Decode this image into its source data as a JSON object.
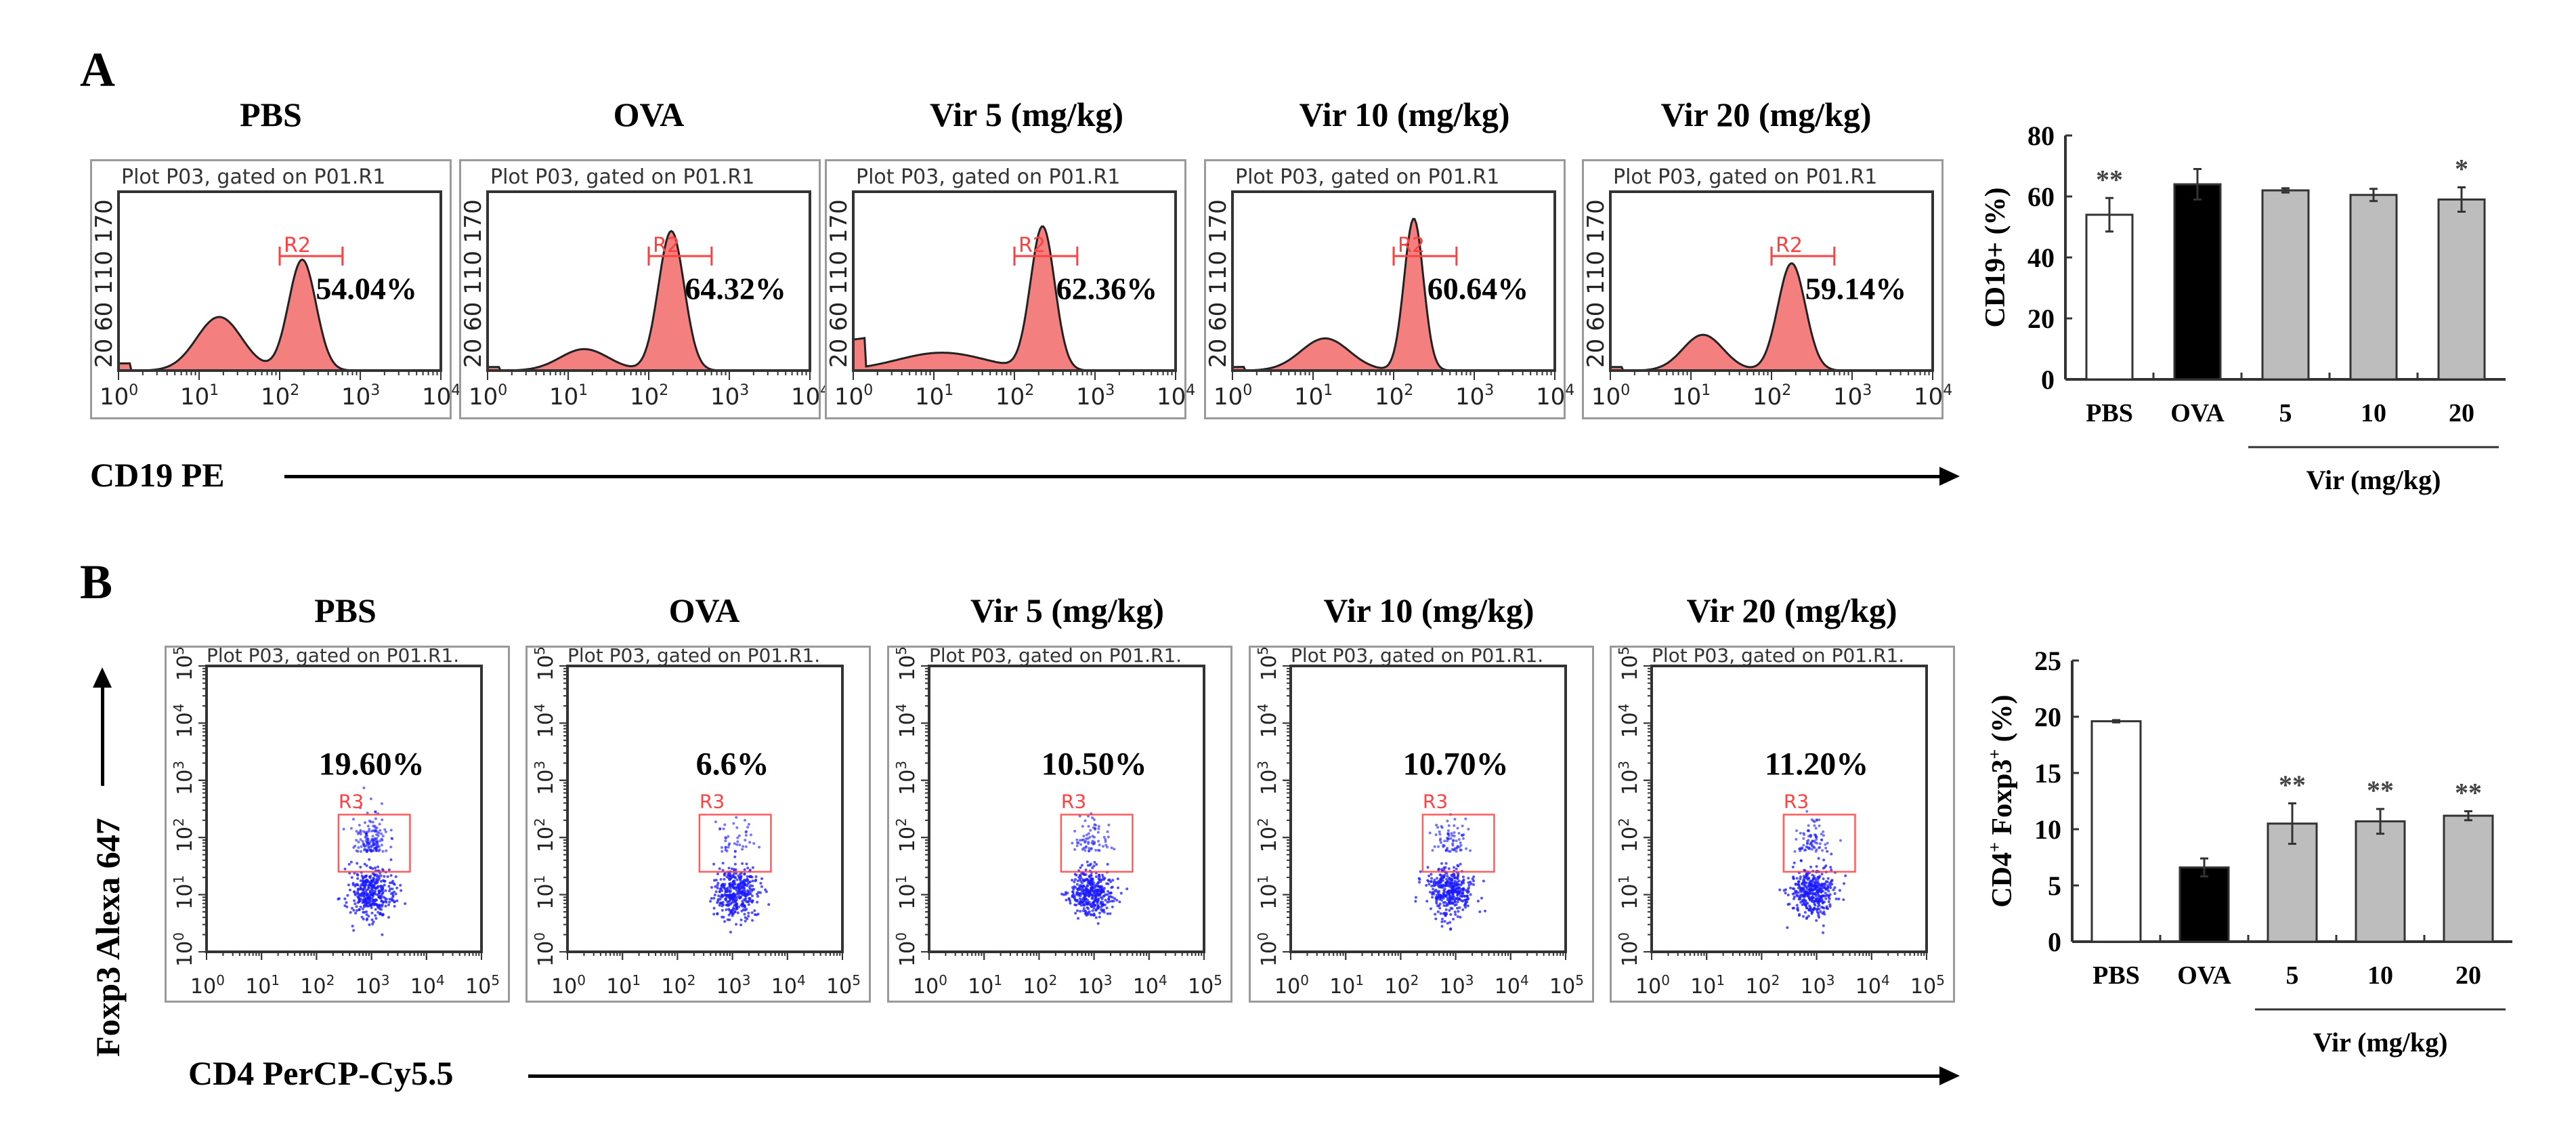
{
  "panel_a": {
    "letter": "A",
    "x_axis_label": "CD19 PE",
    "plot_header": "Plot P03, gated on P01.R1",
    "gate_label": "R2",
    "x_tick_base": "10",
    "x_tick_exponents": [
      "0",
      "1",
      "2",
      "3",
      "4"
    ],
    "y_tick_labels": [
      "20",
      "60",
      "110",
      "170"
    ],
    "plots": [
      {
        "title": "PBS",
        "percent": "54.04%"
      },
      {
        "title": "OVA",
        "percent": "64.32%"
      },
      {
        "title": "Vir 5 (mg/kg)",
        "percent": "62.36%"
      },
      {
        "title": "Vir 10 (mg/kg)",
        "percent": "60.64%"
      },
      {
        "title": "Vir 20 (mg/kg)",
        "percent": "59.14%"
      }
    ]
  },
  "panel_b": {
    "letter": "B",
    "x_axis_label": "CD4 PerCP-Cy5.5",
    "y_axis_label": "Foxp3 Alexa 647",
    "plot_header": "Plot P03, gated on P01.R1.",
    "gate_label": "R3",
    "tick_base": "10",
    "tick_exponents": [
      "0",
      "1",
      "2",
      "3",
      "4",
      "5"
    ],
    "plots": [
      {
        "title": "PBS",
        "percent": "19.60%"
      },
      {
        "title": "OVA",
        "percent": "6.6%"
      },
      {
        "title": "Vir 5 (mg/kg)",
        "percent": "10.50%"
      },
      {
        "title": "Vir 10 (mg/kg)",
        "percent": "10.70%"
      },
      {
        "title": "Vir 20 (mg/kg)",
        "percent": "11.20%"
      }
    ]
  },
  "colors": {
    "histogram_fill": "#f47f7f",
    "gate": "#ff4040",
    "dots": "#1a1aff",
    "bar_pbs": "#ffffff",
    "bar_ova": "#000000",
    "bar_vir": "#bdbdbd"
  },
  "chart_data": [
    {
      "type": "bar",
      "title": "",
      "ylabel": "CD19+ (%)",
      "ylabel_main": "CD19",
      "ylabel_sup": "+",
      "ylabel_tail": " (%)",
      "xlabel": "Vir (mg/kg)",
      "categories": [
        "PBS",
        "OVA",
        "5",
        "10",
        "20"
      ],
      "values": [
        54,
        64,
        62,
        60.5,
        59
      ],
      "errors": [
        5.5,
        5,
        0.7,
        2,
        4
      ],
      "significance": [
        "**",
        "",
        "",
        "",
        "*"
      ],
      "ylim": [
        0,
        80
      ],
      "yticks": [
        0,
        20,
        40,
        60,
        80
      ],
      "grid": false
    },
    {
      "type": "bar",
      "title": "",
      "ylabel": "CD4+ Foxp3+ (%)",
      "ylabel_main": "CD4",
      "ylabel_sup": "+",
      "ylabel_mid": " Foxp3",
      "ylabel_sup2": "+",
      "ylabel_tail": " (%)",
      "xlabel": "Vir (mg/kg)",
      "categories": [
        "PBS",
        "OVA",
        "5",
        "10",
        "20"
      ],
      "values": [
        19.6,
        6.6,
        10.5,
        10.7,
        11.2
      ],
      "errors": [
        0.1,
        0.8,
        1.8,
        1.1,
        0.4
      ],
      "significance": [
        "",
        "",
        "**",
        "**",
        "**"
      ],
      "ylim": [
        0,
        25
      ],
      "yticks": [
        0,
        5,
        10,
        15,
        20,
        25
      ],
      "grid": false
    }
  ]
}
